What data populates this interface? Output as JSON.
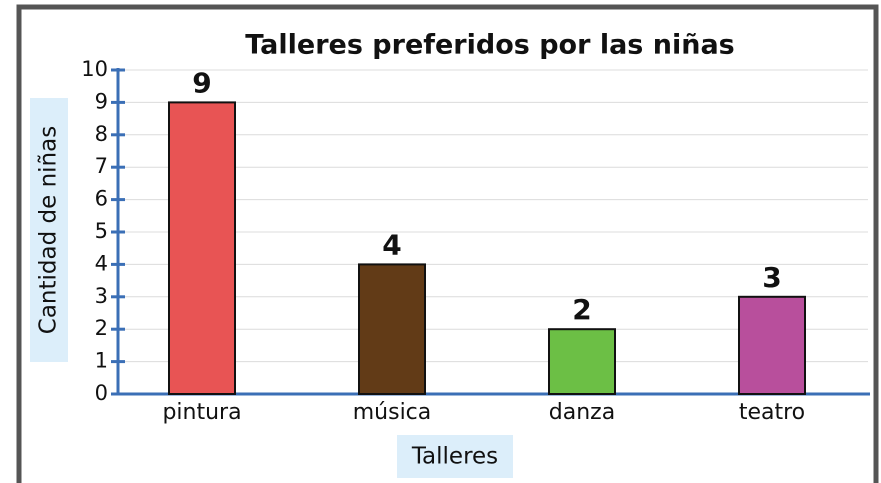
{
  "chart_data": {
    "type": "bar",
    "title": "Talleres preferidos por las niñas",
    "xlabel": "Talleres",
    "ylabel": "Cantidad de niñas",
    "categories": [
      "pintura",
      "música",
      "danza",
      "teatro"
    ],
    "values": [
      9,
      4,
      2,
      3
    ],
    "colors": [
      "#e85454",
      "#623b17",
      "#6cbf45",
      "#b84f9c"
    ],
    "ylim": [
      0,
      10
    ],
    "yticks": [
      0,
      1,
      2,
      3,
      4,
      5,
      6,
      7,
      8,
      9,
      10
    ],
    "grid": true
  }
}
